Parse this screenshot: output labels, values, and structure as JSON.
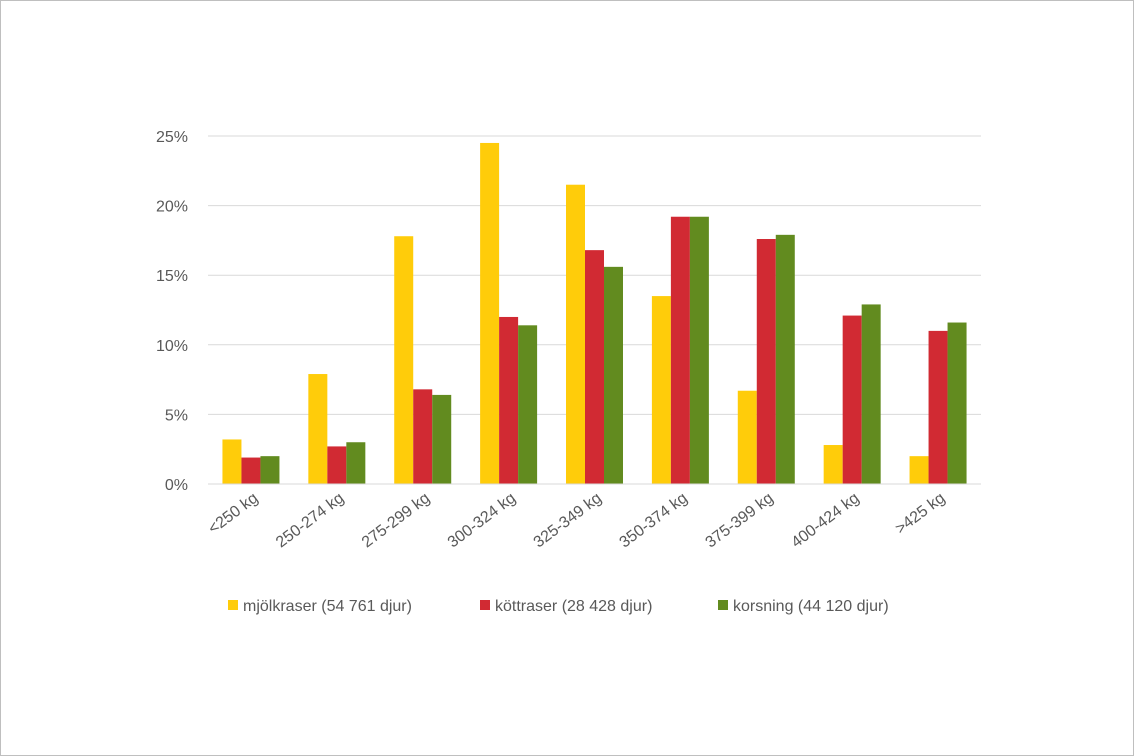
{
  "chart_data": {
    "type": "bar",
    "title": "",
    "xlabel": "",
    "ylabel": "",
    "ylim": [
      0,
      25
    ],
    "yticks": [
      "0%",
      "5%",
      "10%",
      "15%",
      "20%",
      "25%"
    ],
    "ytick_values": [
      0,
      5,
      10,
      15,
      20,
      25
    ],
    "grid": true,
    "legend_position": "bottom",
    "categories": [
      "<250 kg",
      "250-274 kg",
      "275-299 kg",
      "300-324 kg",
      "325-349 kg",
      "350-374 kg",
      "375-399 kg",
      "400-424 kg",
      ">425 kg"
    ],
    "series": [
      {
        "name": "mjölkraser (54 761 djur)",
        "color": "#ffcc0a",
        "values": [
          3.2,
          7.9,
          17.8,
          24.5,
          21.5,
          13.5,
          6.7,
          2.8,
          2.0
        ]
      },
      {
        "name": "köttraser (28 428 djur)",
        "color": "#d12a33",
        "values": [
          1.9,
          2.7,
          6.8,
          12.0,
          16.8,
          19.2,
          17.6,
          12.1,
          11.0
        ]
      },
      {
        "name": "korsning (44 120 djur)",
        "color": "#628b1f",
        "values": [
          2.0,
          3.0,
          6.4,
          11.4,
          15.6,
          19.2,
          17.9,
          12.9,
          11.6
        ]
      }
    ]
  }
}
